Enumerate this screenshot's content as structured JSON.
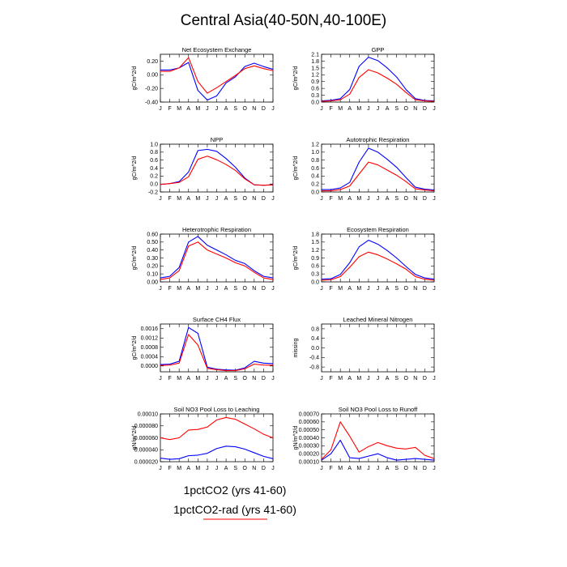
{
  "title": "Central Asia(40-50N,40-100E)",
  "legend": {
    "entries": [
      {
        "label": "1pctCO2 (yrs 41-60)",
        "color": "#0000ff"
      },
      {
        "label": "1pctCO2-rad (yrs 41-60)",
        "color": "#ff0000"
      }
    ]
  },
  "chart_data": [
    {
      "type": "line",
      "title": "Net Ecosystem Exchange",
      "ylabel": "gC/m^2/d",
      "x": [
        "J",
        "F",
        "M",
        "A",
        "M",
        "J",
        "J",
        "A",
        "S",
        "O",
        "N",
        "D",
        "J"
      ],
      "ylim": [
        -0.4,
        0.3
      ],
      "yticks": [
        -0.4,
        -0.2,
        0.0,
        0.2
      ],
      "ytick_labels": [
        "-0.40",
        "-0.20",
        "0.00",
        "0.20"
      ],
      "series": [
        {
          "color": "#0000ff",
          "values": [
            0.07,
            0.07,
            0.1,
            0.18,
            -0.23,
            -0.37,
            -0.31,
            -0.12,
            -0.03,
            0.12,
            0.17,
            0.12,
            0.08
          ]
        },
        {
          "color": "#ff0000",
          "values": [
            0.05,
            0.05,
            0.1,
            0.25,
            -0.1,
            -0.27,
            -0.19,
            -0.1,
            -0.01,
            0.09,
            0.13,
            0.09,
            0.06
          ]
        }
      ]
    },
    {
      "type": "line",
      "title": "GPP",
      "ylabel": "gC/m^2/d",
      "x": [
        "J",
        "F",
        "M",
        "A",
        "M",
        "J",
        "J",
        "A",
        "S",
        "O",
        "N",
        "D",
        "J"
      ],
      "ylim": [
        0,
        2.1
      ],
      "yticks": [
        0,
        0.3,
        0.6,
        0.9,
        1.2,
        1.5,
        1.8,
        2.1
      ],
      "ytick_labels": [
        "0.0",
        "0.3",
        "0.6",
        "0.9",
        "1.2",
        "1.5",
        "1.8",
        "2.1"
      ],
      "series": [
        {
          "color": "#0000ff",
          "values": [
            0.05,
            0.08,
            0.15,
            0.55,
            1.57,
            1.97,
            1.82,
            1.5,
            1.1,
            0.55,
            0.15,
            0.07,
            0.05
          ]
        },
        {
          "color": "#ff0000",
          "values": [
            0.03,
            0.05,
            0.1,
            0.35,
            1.08,
            1.42,
            1.28,
            1.05,
            0.78,
            0.42,
            0.1,
            0.05,
            0.03
          ]
        }
      ]
    },
    {
      "type": "line",
      "title": "NPP",
      "ylabel": "gC/m^2/d",
      "x": [
        "J",
        "F",
        "M",
        "A",
        "M",
        "J",
        "J",
        "A",
        "S",
        "O",
        "N",
        "D",
        "J"
      ],
      "ylim": [
        -0.2,
        1.0
      ],
      "yticks": [
        -0.2,
        0,
        0.2,
        0.4,
        0.6,
        0.8,
        1.0
      ],
      "ytick_labels": [
        "-0.2",
        "0.0",
        "0.2",
        "0.4",
        "0.6",
        "0.8",
        "1.0"
      ],
      "series": [
        {
          "color": "#0000ff",
          "values": [
            -0.01,
            0.01,
            0.06,
            0.3,
            0.84,
            0.87,
            0.82,
            0.64,
            0.42,
            0.15,
            -0.02,
            -0.03,
            -0.02
          ]
        },
        {
          "color": "#ff0000",
          "values": [
            -0.01,
            0.01,
            0.04,
            0.18,
            0.62,
            0.7,
            0.61,
            0.49,
            0.34,
            0.13,
            -0.02,
            -0.03,
            -0.02
          ]
        }
      ]
    },
    {
      "type": "line",
      "title": "Autotrophic Respiration",
      "ylabel": "gC/m^2/d",
      "x": [
        "J",
        "F",
        "M",
        "A",
        "M",
        "J",
        "J",
        "A",
        "S",
        "O",
        "N",
        "D",
        "J"
      ],
      "ylim": [
        0,
        1.2
      ],
      "yticks": [
        0,
        0.2,
        0.4,
        0.6,
        0.8,
        1.0,
        1.2
      ],
      "ytick_labels": [
        "0.0",
        "0.2",
        "0.4",
        "0.6",
        "0.8",
        "1.0",
        "1.2"
      ],
      "series": [
        {
          "color": "#0000ff",
          "values": [
            0.06,
            0.06,
            0.1,
            0.24,
            0.75,
            1.1,
            1.0,
            0.82,
            0.62,
            0.36,
            0.12,
            0.07,
            0.05
          ]
        },
        {
          "color": "#ff0000",
          "values": [
            0.03,
            0.03,
            0.06,
            0.15,
            0.45,
            0.75,
            0.68,
            0.55,
            0.42,
            0.26,
            0.08,
            0.05,
            0.03
          ]
        }
      ]
    },
    {
      "type": "line",
      "title": "Heterotrophic Respiration",
      "ylabel": "gC/m^2/d",
      "x": [
        "J",
        "F",
        "M",
        "A",
        "M",
        "J",
        "J",
        "A",
        "S",
        "O",
        "N",
        "D",
        "J"
      ],
      "ylim": [
        0,
        0.6
      ],
      "yticks": [
        0,
        0.1,
        0.2,
        0.3,
        0.4,
        0.5,
        0.6
      ],
      "ytick_labels": [
        "0.00",
        "0.10",
        "0.20",
        "0.30",
        "0.40",
        "0.50",
        "0.60"
      ],
      "series": [
        {
          "color": "#0000ff",
          "values": [
            0.05,
            0.07,
            0.18,
            0.5,
            0.57,
            0.46,
            0.4,
            0.34,
            0.27,
            0.23,
            0.14,
            0.07,
            0.05
          ]
        },
        {
          "color": "#ff0000",
          "values": [
            0.03,
            0.05,
            0.14,
            0.45,
            0.5,
            0.4,
            0.35,
            0.3,
            0.24,
            0.2,
            0.12,
            0.05,
            0.03
          ]
        }
      ]
    },
    {
      "type": "line",
      "title": "Ecosystem Respiration",
      "ylabel": "gC/m^2/d",
      "x": [
        "J",
        "F",
        "M",
        "A",
        "M",
        "J",
        "J",
        "A",
        "S",
        "O",
        "N",
        "D",
        "J"
      ],
      "ylim": [
        0,
        1.8
      ],
      "yticks": [
        0,
        0.3,
        0.6,
        0.9,
        1.2,
        1.5,
        1.8
      ],
      "ytick_labels": [
        "0.0",
        "0.3",
        "0.6",
        "0.9",
        "1.2",
        "1.5",
        "1.8"
      ],
      "series": [
        {
          "color": "#0000ff",
          "values": [
            0.1,
            0.12,
            0.28,
            0.72,
            1.32,
            1.57,
            1.42,
            1.18,
            0.9,
            0.58,
            0.28,
            0.15,
            0.1
          ]
        },
        {
          "color": "#ff0000",
          "values": [
            0.06,
            0.08,
            0.2,
            0.55,
            0.95,
            1.12,
            1.02,
            0.86,
            0.68,
            0.48,
            0.2,
            0.1,
            0.06
          ]
        }
      ]
    },
    {
      "type": "line",
      "title": "Surface CH4 Flux",
      "ylabel": "gC/m^2/d",
      "x": [
        "J",
        "F",
        "M",
        "A",
        "M",
        "J",
        "J",
        "A",
        "S",
        "O",
        "N",
        "D",
        "J"
      ],
      "ylim": [
        -0.00025,
        0.0018
      ],
      "yticks": [
        0,
        0.0004,
        0.0008,
        0.0012,
        0.0016
      ],
      "ytick_labels": [
        "0.0000",
        "0.0004",
        "0.0008",
        "0.0012",
        "0.0016"
      ],
      "series": [
        {
          "color": "#0000ff",
          "values": [
            6e-05,
            8e-05,
            0.0002,
            0.00165,
            0.0014,
            -5e-05,
            -0.00014,
            -0.00017,
            -0.00018,
            -8e-05,
            0.0002,
            0.00012,
            0.0001
          ]
        },
        {
          "color": "#ff0000",
          "values": [
            2e-05,
            4e-05,
            0.00012,
            0.00135,
            0.0009,
            -0.0001,
            -0.00016,
            -0.0002,
            -0.0002,
            -0.00012,
            8e-05,
            4e-05,
            3e-05
          ]
        }
      ]
    },
    {
      "type": "line",
      "title": "Leached Mineral Nitrogen",
      "ylabel": "missing",
      "x": [
        "J",
        "F",
        "M",
        "A",
        "M",
        "J",
        "J",
        "A",
        "S",
        "O",
        "N",
        "D",
        "J"
      ],
      "ylim": [
        -1.0,
        1.0
      ],
      "yticks": [
        -0.8,
        -0.4,
        0,
        0.4,
        0.8
      ],
      "ytick_labels": [
        "-0.8",
        "-0.4",
        "0.0",
        "0.4",
        "0.8"
      ],
      "series": []
    },
    {
      "type": "line",
      "title": "Soil NO3 Pool Loss to Leaching",
      "ylabel": "gN/m^2/d",
      "x": [
        "J",
        "F",
        "M",
        "A",
        "M",
        "J",
        "J",
        "A",
        "S",
        "O",
        "N",
        "D",
        "J"
      ],
      "ylim": [
        2e-05,
        0.0001
      ],
      "yticks": [
        2e-05,
        4e-05,
        6e-05,
        8e-05,
        0.0001
      ],
      "ytick_labels": [
        "0.000020",
        "0.000040",
        "0.000060",
        "0.000080",
        "0.00010"
      ],
      "series": [
        {
          "color": "#0000ff",
          "values": [
            2.6e-05,
            2.4e-05,
            2.5e-05,
            3e-05,
            3.1e-05,
            3.4e-05,
            4.2e-05,
            4.6e-05,
            4.5e-05,
            4.1e-05,
            3.5e-05,
            2.9e-05,
            2.5e-05
          ]
        },
        {
          "color": "#ff0000",
          "values": [
            6e-05,
            5.7e-05,
            6e-05,
            7.3e-05,
            7.4e-05,
            7.8e-05,
            9e-05,
            9.4e-05,
            9.1e-05,
            8.3e-05,
            7.5e-05,
            6.6e-05,
            6e-05
          ]
        }
      ]
    },
    {
      "type": "line",
      "title": "Soil NO3 Pool Loss to Runoff",
      "ylabel": "gN/m^2/d",
      "x": [
        "J",
        "F",
        "M",
        "A",
        "M",
        "J",
        "J",
        "A",
        "S",
        "O",
        "N",
        "D",
        "J"
      ],
      "ylim": [
        0.0001,
        0.0007
      ],
      "yticks": [
        0.0001,
        0.0002,
        0.0003,
        0.0004,
        0.0005,
        0.0006,
        0.0007
      ],
      "ytick_labels": [
        "0.00010",
        "0.00020",
        "0.00030",
        "0.00040",
        "0.00050",
        "0.00060",
        "0.00070"
      ],
      "series": [
        {
          "color": "#0000ff",
          "values": [
            0.00012,
            0.0002,
            0.00037,
            0.00015,
            0.00014,
            0.00017,
            0.0002,
            0.00015,
            0.00012,
            0.00013,
            0.00014,
            0.00013,
            0.00012
          ]
        },
        {
          "color": "#ff0000",
          "values": [
            0.00013,
            0.00025,
            0.0006,
            0.00042,
            0.00022,
            0.00029,
            0.00034,
            0.0003,
            0.00027,
            0.00026,
            0.00028,
            0.00018,
            0.00014
          ]
        }
      ]
    }
  ]
}
